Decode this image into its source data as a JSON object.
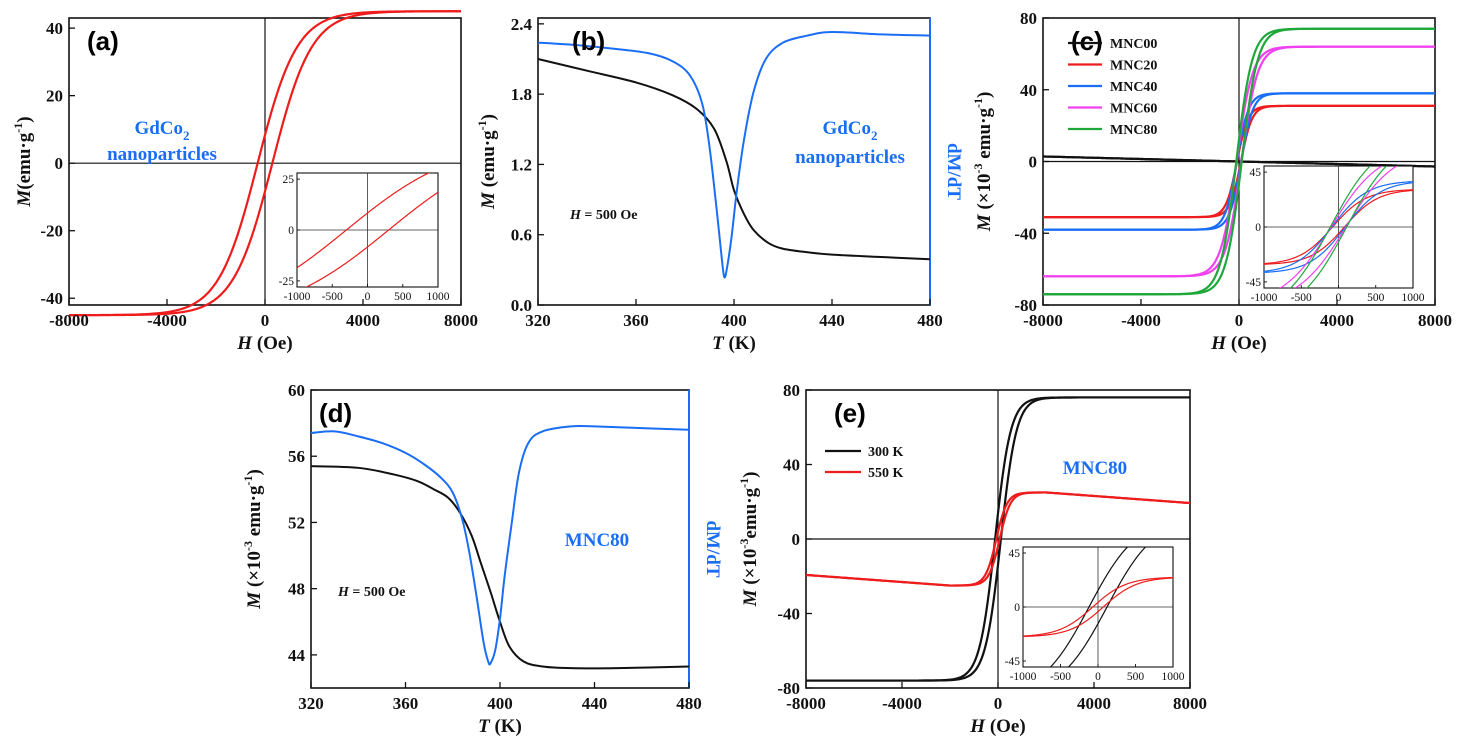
{
  "colors": {
    "red": "#ee1c1c",
    "blue": "#1a6ef5",
    "black": "#111111",
    "magenta": "#f040f0",
    "green": "#1fa83a"
  },
  "chart_data": [
    {
      "panel": "(a)",
      "type": "line",
      "xlabel_main": "H",
      "xlabel_unit": " (Oe)",
      "ylabel_main": "M",
      "ylabel_unit": "(emu·g",
      "ylabel_sup": "-1",
      "ylabel_end": ")",
      "xlim": [
        -8000,
        8000
      ],
      "ylim": [
        -42,
        43
      ],
      "xticks": [
        "-8000",
        "-4000",
        "0",
        "4000",
        "8000"
      ],
      "yticks": [
        "-40",
        "-20",
        "0",
        "20",
        "40"
      ],
      "annotation_line1": "GdCo",
      "annotation_sub": "2",
      "annotation_line2": "nanoparticles",
      "loop": {
        "Ms": 45,
        "Hc": 300,
        "a": 1600
      },
      "inset": {
        "xlim": [
          -1000,
          1000
        ],
        "ylim": [
          -28,
          28
        ],
        "xticks": [
          "-1000",
          "-500",
          "0",
          "500",
          "1000"
        ],
        "yticks": [
          "25",
          "0",
          "-25"
        ]
      }
    },
    {
      "panel": "(b)",
      "type": "line",
      "xlabel_main": "T",
      "xlabel_unit": " (K)",
      "ylabel_main": "M",
      "ylabel_unit": " (emu·g",
      "ylabel_sup": "-1",
      "ylabel_end": ")",
      "right_label": "dM/dT",
      "xlim": [
        320,
        480
      ],
      "ylim": [
        0,
        2.45
      ],
      "xticks": [
        "320",
        "360",
        "400",
        "440",
        "480"
      ],
      "yticks": [
        "0.0",
        "0.6",
        "1.2",
        "1.8",
        "2.4"
      ],
      "annotation_line1": "GdCo",
      "annotation_sub": "2",
      "annotation_line2": "nanoparticles",
      "field_label": "H",
      "field_value": " = 500 Oe",
      "series": [
        {
          "color": "black",
          "x": [
            320,
            340,
            360,
            375,
            385,
            392,
            397,
            400,
            404,
            408,
            414,
            420,
            430,
            440,
            460,
            480
          ],
          "y": [
            2.1,
            2.0,
            1.9,
            1.79,
            1.67,
            1.5,
            1.22,
            0.98,
            0.78,
            0.64,
            0.53,
            0.48,
            0.45,
            0.43,
            0.41,
            0.39
          ]
        },
        {
          "color": "blue",
          "x": [
            320,
            335,
            350,
            365,
            375,
            382,
            387,
            390,
            393,
            395,
            396,
            397,
            399,
            401,
            404,
            408,
            413,
            420,
            430,
            440,
            460,
            480
          ],
          "y": [
            2.24,
            2.22,
            2.19,
            2.15,
            2.08,
            1.96,
            1.72,
            1.35,
            0.8,
            0.4,
            0.24,
            0.3,
            0.58,
            0.95,
            1.4,
            1.82,
            2.1,
            2.24,
            2.3,
            2.33,
            2.31,
            2.3
          ]
        }
      ]
    },
    {
      "panel": "(c)",
      "type": "line",
      "xlabel_main": "H",
      "xlabel_unit": " (Oe)",
      "ylabel_main": "M",
      "ylabel_unit": " (×10",
      "ylabel_sup": "-3",
      "ylabel_mid": " emu·g",
      "ylabel_sup2": "-1",
      "ylabel_end": ")",
      "xlim": [
        -8000,
        8000
      ],
      "ylim": [
        -80,
        80
      ],
      "xticks": [
        "-8000",
        "-4000",
        "0",
        "4000",
        "8000"
      ],
      "yticks": [
        "-80",
        "-40",
        "0",
        "40",
        "80"
      ],
      "legend": [
        "MNC00",
        "MNC20",
        "MNC40",
        "MNC60",
        "MNC80"
      ],
      "loops": [
        {
          "name": "MNC00",
          "color": "black",
          "linear": -0.00035
        },
        {
          "name": "MNC20",
          "color": "red",
          "Ms": 31,
          "Hc": 80,
          "a": 450
        },
        {
          "name": "MNC40",
          "color": "blue",
          "Ms": 38,
          "Hc": 90,
          "a": 480
        },
        {
          "name": "MNC60",
          "color": "magenta",
          "Ms": 64,
          "Hc": 100,
          "a": 650
        },
        {
          "name": "MNC80",
          "color": "green",
          "Ms": 74,
          "Hc": 110,
          "a": 650
        }
      ],
      "inset": {
        "xlim": [
          -1000,
          1000
        ],
        "ylim": [
          -50,
          50
        ],
        "xticks": [
          "-1000",
          "-500",
          "0",
          "500",
          "1000"
        ],
        "yticks": [
          "45",
          "0",
          "-45"
        ]
      }
    },
    {
      "panel": "(d)",
      "type": "line",
      "xlabel_main": "T",
      "xlabel_unit": " (K)",
      "ylabel_main": "M",
      "ylabel_unit": " (×10",
      "ylabel_sup": "-3",
      "ylabel_mid": " emu·g",
      "ylabel_sup2": "-1",
      "ylabel_end": ")",
      "right_label": "dM/dT",
      "xlim": [
        320,
        480
      ],
      "ylim": [
        42,
        60
      ],
      "xticks": [
        "320",
        "360",
        "400",
        "440",
        "480"
      ],
      "yticks": [
        "44",
        "48",
        "52",
        "56",
        "60"
      ],
      "annotation": "MNC80",
      "field_label": "H",
      "field_value": " = 500 Oe",
      "series": [
        {
          "color": "black",
          "x": [
            320,
            340,
            355,
            365,
            372,
            378,
            383,
            388,
            392,
            396,
            400,
            404,
            410,
            418,
            430,
            450,
            480
          ],
          "y": [
            55.4,
            55.3,
            54.9,
            54.5,
            54.0,
            53.5,
            52.6,
            51.2,
            49.5,
            47.8,
            46.0,
            44.5,
            43.6,
            43.3,
            43.2,
            43.2,
            43.3
          ]
        },
        {
          "color": "blue",
          "x": [
            320,
            330,
            340,
            350,
            360,
            368,
            375,
            380,
            384,
            387,
            390,
            393,
            395,
            396,
            398,
            400,
            402,
            405,
            408,
            412,
            418,
            430,
            440,
            460,
            480
          ],
          "y": [
            57.4,
            57.5,
            57.2,
            56.8,
            56.2,
            55.5,
            54.7,
            53.8,
            52.2,
            50.2,
            47.6,
            44.8,
            43.6,
            43.5,
            44.3,
            46.2,
            48.8,
            52.0,
            55.0,
            56.8,
            57.5,
            57.8,
            57.8,
            57.7,
            57.6
          ]
        }
      ]
    },
    {
      "panel": "(e)",
      "type": "line",
      "xlabel_main": "H",
      "xlabel_unit": " (Oe)",
      "ylabel_main": "M",
      "ylabel_unit": " (×10",
      "ylabel_sup": "-3",
      "ylabel_mid": "emu·g",
      "ylabel_sup2": "-1",
      "ylabel_end": ")",
      "xlim": [
        -8000,
        8000
      ],
      "ylim": [
        -80,
        80
      ],
      "xticks": [
        "-8000",
        "-4000",
        "0",
        "4000",
        "8000"
      ],
      "yticks": [
        "-80",
        "-40",
        "0",
        "40",
        "80"
      ],
      "annotation": "MNC80",
      "legend": [
        "300 K",
        "550 K"
      ],
      "loops": [
        {
          "name": "300 K",
          "color": "black",
          "Ms": 76,
          "Hc": 120,
          "a": 650
        },
        {
          "name": "550 K",
          "color": "red",
          "Ms": 25,
          "Hc": 70,
          "a": 450,
          "slope": -0.00095,
          "H0": 2000
        }
      ],
      "inset": {
        "xlim": [
          -1000,
          1000
        ],
        "ylim": [
          -50,
          50
        ],
        "xticks": [
          "-1000",
          "-500",
          "0",
          "500",
          "1000"
        ],
        "yticks": [
          "45",
          "0",
          "-45"
        ]
      }
    }
  ]
}
